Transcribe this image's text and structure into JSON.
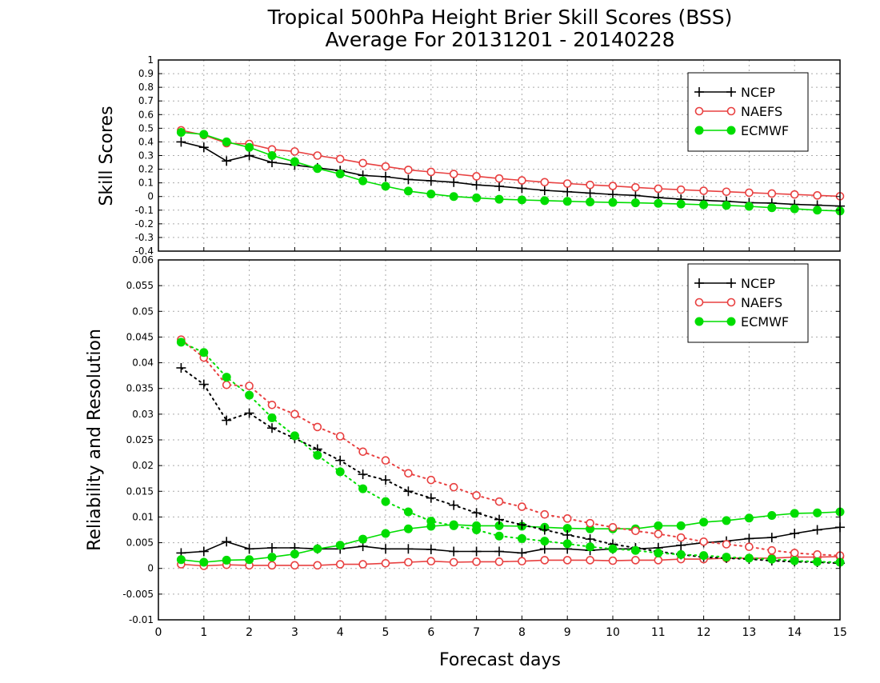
{
  "figure": {
    "title_line1": "Tropical 500hPa Height Brier Skill Scores (BSS)",
    "title_line2": "Average For 20131201 - 20140228",
    "xlabel": "Forecast days"
  },
  "colors": {
    "NCEP": "#000000",
    "NAEFS": "#e84040",
    "ECMWF": "#00dd00",
    "grid": "#aaaaaa"
  },
  "chart_data": [
    {
      "type": "line",
      "title": "",
      "ylabel": "Skill Scores",
      "xlabel": "Forecast days",
      "xlim": [
        0,
        15
      ],
      "ylim": [
        -0.4,
        1
      ],
      "xticks": [
        "0",
        "1",
        "2",
        "3",
        "4",
        "5",
        "6",
        "7",
        "8",
        "9",
        "10",
        "11",
        "12",
        "13",
        "14",
        "15"
      ],
      "yticks": [
        "-0.4",
        "-0.3",
        "-0.2",
        "-0.1",
        "0",
        "0.1",
        "0.2",
        "0.3",
        "0.4",
        "0.5",
        "0.6",
        "0.7",
        "0.8",
        "0.9",
        "1"
      ],
      "grid": true,
      "legend_position": "top-right",
      "x": [
        0.5,
        1,
        1.5,
        2,
        2.5,
        3,
        3.5,
        4,
        4.5,
        5,
        5.5,
        6,
        6.5,
        7,
        7.5,
        8,
        8.5,
        9,
        9.5,
        10,
        10.5,
        11,
        11.5,
        12,
        12.5,
        13,
        13.5,
        14,
        14.5,
        15
      ],
      "series": [
        {
          "name": "NCEP",
          "marker": "plus",
          "line": "solid",
          "values": [
            0.4,
            0.36,
            0.26,
            0.3,
            0.25,
            0.23,
            0.21,
            0.19,
            0.155,
            0.145,
            0.125,
            0.115,
            0.105,
            0.085,
            0.075,
            0.06,
            0.045,
            0.035,
            0.025,
            0.015,
            0.008,
            -0.008,
            -0.02,
            -0.028,
            -0.035,
            -0.045,
            -0.048,
            -0.058,
            -0.063,
            -0.07
          ]
        },
        {
          "name": "NAEFS",
          "marker": "open-circle",
          "line": "solid",
          "values": [
            0.485,
            0.45,
            0.39,
            0.385,
            0.345,
            0.33,
            0.3,
            0.275,
            0.245,
            0.22,
            0.195,
            0.18,
            0.165,
            0.148,
            0.132,
            0.118,
            0.105,
            0.095,
            0.085,
            0.077,
            0.067,
            0.057,
            0.05,
            0.042,
            0.035,
            0.028,
            0.022,
            0.015,
            0.008,
            0.002
          ]
        },
        {
          "name": "ECMWF",
          "marker": "filled-circle",
          "line": "solid",
          "values": [
            0.47,
            0.455,
            0.4,
            0.36,
            0.3,
            0.255,
            0.205,
            0.165,
            0.115,
            0.075,
            0.04,
            0.018,
            0.0,
            -0.01,
            -0.02,
            -0.025,
            -0.03,
            -0.035,
            -0.04,
            -0.043,
            -0.046,
            -0.05,
            -0.055,
            -0.06,
            -0.065,
            -0.072,
            -0.082,
            -0.09,
            -0.1,
            -0.106
          ]
        }
      ]
    },
    {
      "type": "line",
      "title": "",
      "ylabel": "Reliability and Resolution",
      "xlabel": "Forecast days",
      "xlim": [
        0,
        15
      ],
      "ylim": [
        -0.01,
        0.06
      ],
      "xticks": [
        "0",
        "1",
        "2",
        "3",
        "4",
        "5",
        "6",
        "7",
        "8",
        "9",
        "10",
        "11",
        "12",
        "13",
        "14",
        "15"
      ],
      "yticks": [
        "-0.01",
        "-0.005",
        "0",
        "0.005",
        "0.01",
        "0.015",
        "0.02",
        "0.025",
        "0.03",
        "0.035",
        "0.04",
        "0.045",
        "0.05",
        "0.055",
        "0.06"
      ],
      "grid": true,
      "legend_position": "top-right",
      "x": [
        0.5,
        1,
        1.5,
        2,
        2.5,
        3,
        3.5,
        4,
        4.5,
        5,
        5.5,
        6,
        6.5,
        7,
        7.5,
        8,
        8.5,
        9,
        9.5,
        10,
        10.5,
        11,
        11.5,
        12,
        12.5,
        13,
        13.5,
        14,
        14.5,
        15
      ],
      "series": [
        {
          "name": "NCEP",
          "marker": "plus",
          "line": "solid",
          "values": [
            0.003,
            0.0033,
            0.0052,
            0.0038,
            0.004,
            0.004,
            0.0038,
            0.0038,
            0.0043,
            0.0038,
            0.0038,
            0.0037,
            0.0033,
            0.0033,
            0.0033,
            0.003,
            0.0038,
            0.0038,
            0.0035,
            0.0038,
            0.0038,
            0.004,
            0.0045,
            0.005,
            0.0053,
            0.0058,
            0.006,
            0.0068,
            0.0075,
            0.008
          ]
        },
        {
          "name": "NAEFS",
          "marker": "open-circle",
          "line": "solid",
          "values": [
            0.0008,
            0.0005,
            0.0007,
            0.0006,
            0.0006,
            0.0006,
            0.0006,
            0.0008,
            0.0008,
            0.001,
            0.0012,
            0.0014,
            0.0012,
            0.0013,
            0.0013,
            0.0014,
            0.0016,
            0.0016,
            0.0016,
            0.0015,
            0.0016,
            0.0016,
            0.0018,
            0.0018,
            0.002,
            0.002,
            0.002,
            0.0022,
            0.0022,
            0.0023
          ]
        },
        {
          "name": "ECMWF",
          "marker": "filled-circle",
          "line": "solid",
          "values": [
            0.0017,
            0.0012,
            0.0016,
            0.0017,
            0.0022,
            0.0028,
            0.0038,
            0.0045,
            0.0057,
            0.0068,
            0.0077,
            0.0082,
            0.0085,
            0.0083,
            0.0083,
            0.0082,
            0.008,
            0.0078,
            0.0077,
            0.0077,
            0.0077,
            0.0083,
            0.0083,
            0.009,
            0.0093,
            0.0098,
            0.0103,
            0.0107,
            0.0108,
            0.011
          ]
        },
        {
          "name": "NCEP",
          "marker": "plus",
          "line": "dotted",
          "values": [
            0.039,
            0.0358,
            0.0288,
            0.0302,
            0.0273,
            0.0253,
            0.0232,
            0.021,
            0.0183,
            0.0172,
            0.015,
            0.0137,
            0.0123,
            0.0108,
            0.0095,
            0.0085,
            0.0075,
            0.0065,
            0.0057,
            0.0047,
            0.004,
            0.0033,
            0.0027,
            0.0022,
            0.002,
            0.0018,
            0.0015,
            0.0013,
            0.0012,
            0.001
          ]
        },
        {
          "name": "NAEFS",
          "marker": "open-circle",
          "line": "dotted",
          "values": [
            0.0445,
            0.041,
            0.0357,
            0.0355,
            0.0318,
            0.03,
            0.0275,
            0.0257,
            0.0227,
            0.021,
            0.0185,
            0.0172,
            0.0158,
            0.0142,
            0.013,
            0.012,
            0.0105,
            0.0097,
            0.0088,
            0.008,
            0.0073,
            0.0067,
            0.006,
            0.0052,
            0.0047,
            0.0042,
            0.0035,
            0.003,
            0.0027,
            0.0025
          ]
        },
        {
          "name": "ECMWF",
          "marker": "filled-circle",
          "line": "dotted",
          "values": [
            0.044,
            0.042,
            0.0372,
            0.0337,
            0.0293,
            0.0258,
            0.022,
            0.0188,
            0.0155,
            0.013,
            0.011,
            0.0092,
            0.0083,
            0.0075,
            0.0063,
            0.0058,
            0.0053,
            0.0048,
            0.0042,
            0.0038,
            0.0035,
            0.003,
            0.0027,
            0.0025,
            0.0022,
            0.002,
            0.0018,
            0.0015,
            0.0013,
            0.0012
          ]
        }
      ]
    }
  ]
}
